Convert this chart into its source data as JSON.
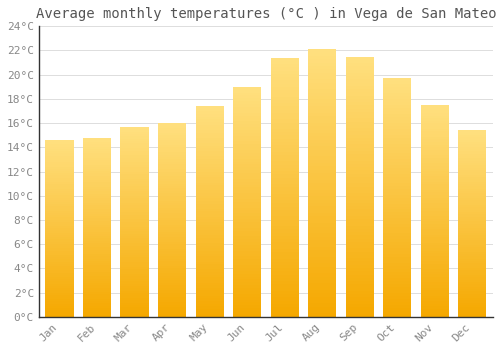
{
  "title": "Average monthly temperatures (°C ) in Vega de San Mateo",
  "months": [
    "Jan",
    "Feb",
    "Mar",
    "Apr",
    "May",
    "Jun",
    "Jul",
    "Aug",
    "Sep",
    "Oct",
    "Nov",
    "Dec"
  ],
  "temperatures": [
    14.6,
    14.8,
    15.7,
    16.0,
    17.4,
    19.0,
    21.4,
    22.1,
    21.5,
    19.7,
    17.5,
    15.4
  ],
  "bar_color_bottom": "#F5A800",
  "bar_color_top": "#FFE080",
  "ylim": [
    0,
    24
  ],
  "yticks": [
    0,
    2,
    4,
    6,
    8,
    10,
    12,
    14,
    16,
    18,
    20,
    22,
    24
  ],
  "background_color": "#FFFFFF",
  "grid_color": "#DDDDDD",
  "title_fontsize": 10,
  "tick_fontsize": 8,
  "font_family": "monospace",
  "bar_width": 0.75
}
